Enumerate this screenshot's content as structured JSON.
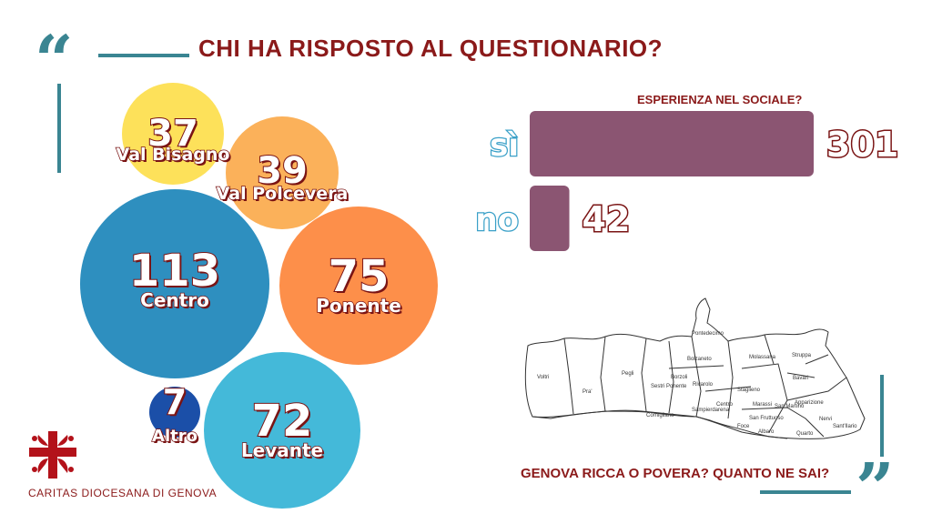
{
  "header": {
    "title": "CHI HA RISPOSTO AL QUESTIONARIO?"
  },
  "colors": {
    "accent_teal": "#3a8592",
    "title_red": "#8b1a1a",
    "bar_purple": "#8b5572"
  },
  "bubbles": [
    {
      "value": "37",
      "label": "Val Bisagno",
      "color": "#fde15a"
    },
    {
      "value": "39",
      "label": "Val Polcevera",
      "color": "#fbb15a"
    },
    {
      "value": "113",
      "label": "Centro",
      "color": "#2e8fbf"
    },
    {
      "value": "75",
      "label": "Ponente",
      "color": "#fd8f4a"
    },
    {
      "value": "7",
      "label": "Altro",
      "color": "#1b4fa8"
    },
    {
      "value": "72",
      "label": "Levante",
      "color": "#44b9d9"
    }
  ],
  "chart_data": {
    "type": "bar",
    "orientation": "horizontal",
    "title": "ESPERIENZA NEL SOCIALE?",
    "categories": [
      "sì",
      "no"
    ],
    "values": [
      301,
      42
    ],
    "xlim": [
      0,
      301
    ]
  },
  "map": {
    "districts": [
      "Voltri",
      "Pra'",
      "Pegli",
      "Sestri Ponente",
      "Cornigliano",
      "Sampierdarena",
      "Borzoli",
      "Rivarolo",
      "Bolzaneto",
      "Pontedecimo",
      "Centro",
      "Marassi",
      "Staglieno",
      "Molassana",
      "Struppa",
      "Bavari",
      "Apparizione",
      "San Fruttuoso",
      "Foce",
      "Albaro",
      "Quarto",
      "Nervi",
      "Sant'Ilario",
      "San Martino"
    ]
  },
  "footer": {
    "subtitle": "GENOVA RICCA O POVERA? QUANTO NE SAI?",
    "org": "CARITAS DIOCESANA DI GENOVA"
  }
}
